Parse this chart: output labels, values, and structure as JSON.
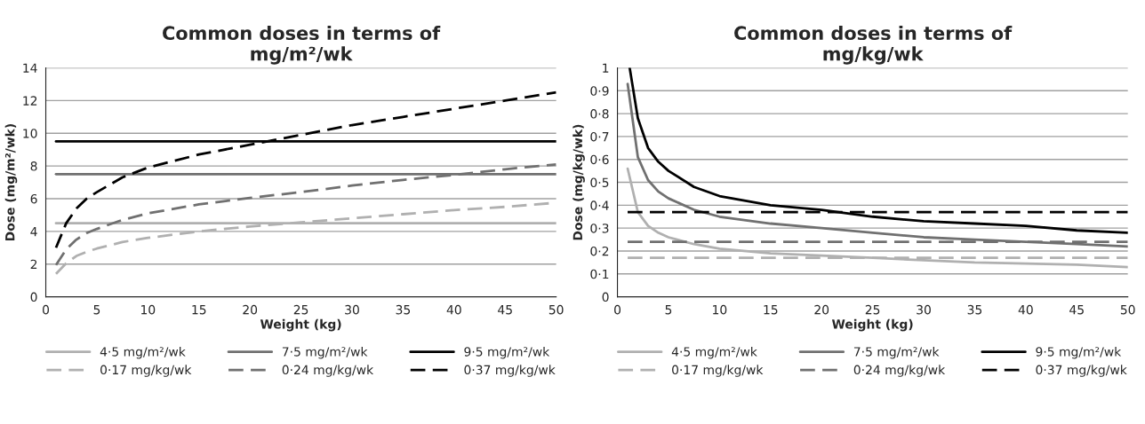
{
  "chart_data": [
    {
      "type": "line",
      "title": "Common doses in terms of\nmg/m²/wk",
      "xlabel": "Weight (kg)",
      "ylabel": "Dose (mg/m²/wk)",
      "xlim": [
        0,
        50
      ],
      "xticks": [
        0,
        5,
        10,
        15,
        20,
        25,
        30,
        35,
        40,
        45,
        50
      ],
      "ylim": [
        0,
        14
      ],
      "yticks": [
        0,
        2,
        4,
        6,
        8,
        10,
        12,
        14
      ],
      "grid": "y",
      "legend": "bottom",
      "marker": "none",
      "series": [
        {
          "name": "4·5 mg/m²/wk",
          "color": "#b0b0b0",
          "line_style": "solid",
          "x": [
            1,
            50
          ],
          "values": [
            4.5,
            4.5
          ]
        },
        {
          "name": "7·5 mg/m²/wk",
          "color": "#707070",
          "line_style": "solid",
          "x": [
            1,
            50
          ],
          "values": [
            7.5,
            7.5
          ]
        },
        {
          "name": "9·5 mg/m²/wk",
          "color": "#000000",
          "line_style": "solid",
          "x": [
            1,
            50
          ],
          "values": [
            9.5,
            9.5
          ]
        },
        {
          "name": "0·17 mg/kg/wk",
          "color": "#b0b0b0",
          "line_style": "dashed",
          "x": [
            1,
            2,
            3,
            4,
            5,
            7.5,
            10,
            15,
            20,
            25,
            30,
            35,
            40,
            45,
            50
          ],
          "values": [
            1.4,
            2.05,
            2.5,
            2.75,
            2.95,
            3.35,
            3.6,
            4.0,
            4.3,
            4.55,
            4.8,
            5.05,
            5.3,
            5.5,
            5.75
          ]
        },
        {
          "name": "0·24 mg/kg/wk",
          "color": "#707070",
          "line_style": "dashed",
          "x": [
            1,
            2,
            3,
            4,
            5,
            7.5,
            10,
            15,
            20,
            25,
            30,
            35,
            40,
            45,
            50
          ],
          "values": [
            1.95,
            2.9,
            3.5,
            3.9,
            4.15,
            4.7,
            5.1,
            5.65,
            6.05,
            6.4,
            6.8,
            7.15,
            7.45,
            7.8,
            8.1
          ]
        },
        {
          "name": "0·37 mg/kg/wk",
          "color": "#000000",
          "line_style": "dashed",
          "x": [
            1,
            2,
            3,
            4,
            5,
            7.5,
            10,
            15,
            20,
            25,
            30,
            35,
            40,
            45,
            50
          ],
          "values": [
            3.0,
            4.5,
            5.4,
            6.0,
            6.4,
            7.3,
            7.9,
            8.7,
            9.3,
            9.9,
            10.5,
            11.0,
            11.5,
            12.0,
            12.5
          ]
        }
      ]
    },
    {
      "type": "line",
      "title": "Common doses in terms of\nmg/kg/wk",
      "xlabel": "Weight (kg)",
      "ylabel": "Dose (mg/kg/wk)",
      "xlim": [
        0,
        50
      ],
      "xticks": [
        0,
        5,
        10,
        15,
        20,
        25,
        30,
        35,
        40,
        45,
        50
      ],
      "ylim": [
        0,
        1
      ],
      "yticks": [
        0,
        {
          "value": 0.1,
          "label": "0·1"
        },
        {
          "value": 0.2,
          "label": "0·2"
        },
        {
          "value": 0.3,
          "label": "0·3"
        },
        {
          "value": 0.4,
          "label": "0·4"
        },
        {
          "value": 0.5,
          "label": "0·5"
        },
        {
          "value": 0.6,
          "label": "0·6"
        },
        {
          "value": 0.7,
          "label": "0·7"
        },
        {
          "value": 0.8,
          "label": "0·8"
        },
        {
          "value": 0.9,
          "label": "0·9"
        },
        1
      ],
      "grid": "y",
      "legend": "bottom",
      "marker": "none",
      "series": [
        {
          "name": "4·5 mg/m²/wk",
          "color": "#b0b0b0",
          "line_style": "solid",
          "x": [
            1,
            2,
            3,
            4,
            5,
            7.5,
            10,
            15,
            20,
            25,
            30,
            35,
            40,
            45,
            50
          ],
          "values": [
            0.56,
            0.37,
            0.31,
            0.28,
            0.26,
            0.23,
            0.21,
            0.19,
            0.18,
            0.17,
            0.16,
            0.15,
            0.145,
            0.14,
            0.13
          ]
        },
        {
          "name": "7·5 mg/m²/wk",
          "color": "#707070",
          "line_style": "solid",
          "x": [
            1,
            2,
            3,
            4,
            5,
            7.5,
            10,
            15,
            20,
            25,
            30,
            35,
            40,
            45,
            50
          ],
          "values": [
            0.93,
            0.61,
            0.51,
            0.46,
            0.43,
            0.38,
            0.35,
            0.32,
            0.3,
            0.28,
            0.26,
            0.25,
            0.24,
            0.23,
            0.22
          ]
        },
        {
          "name": "9·5 mg/m²/wk",
          "color": "#000000",
          "line_style": "solid",
          "x": [
            1.2,
            2,
            3,
            4,
            5,
            7.5,
            10,
            15,
            20,
            25,
            30,
            35,
            40,
            45,
            50
          ],
          "values": [
            1.0,
            0.78,
            0.65,
            0.59,
            0.55,
            0.48,
            0.44,
            0.4,
            0.38,
            0.35,
            0.33,
            0.32,
            0.31,
            0.29,
            0.28
          ]
        },
        {
          "name": "0·17 mg/kg/wk",
          "color": "#b0b0b0",
          "line_style": "dashed",
          "x": [
            1,
            50
          ],
          "values": [
            0.17,
            0.17
          ]
        },
        {
          "name": "0·24 mg/kg/wk",
          "color": "#707070",
          "line_style": "dashed",
          "x": [
            1,
            50
          ],
          "values": [
            0.24,
            0.24
          ]
        },
        {
          "name": "0·37 mg/kg/wk",
          "color": "#000000",
          "line_style": "dashed",
          "x": [
            1,
            50
          ],
          "values": [
            0.37,
            0.37
          ]
        }
      ]
    }
  ]
}
